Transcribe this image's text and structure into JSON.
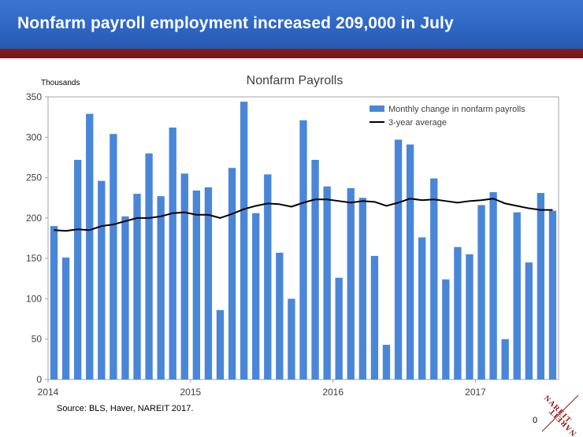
{
  "slide": {
    "title": "Nonfarm payroll employment increased 209,000 in July",
    "source": "Source: BLS, Haver, NAREIT 2017.",
    "page_number": "0",
    "logo_text": [
      "NAREIT",
      "NAREIT"
    ]
  },
  "chart_data": {
    "type": "bar",
    "title": "Nonfarm Payrolls",
    "ylabel": "Thousands",
    "xlabel": "",
    "ylim": [
      0,
      350
    ],
    "yticks": [
      0,
      50,
      100,
      150,
      200,
      250,
      300,
      350
    ],
    "xticks": [
      {
        "label": "2014",
        "index": 0
      },
      {
        "label": "2015",
        "index": 12
      },
      {
        "label": "2016",
        "index": 24
      },
      {
        "label": "2017",
        "index": 36
      }
    ],
    "grid": false,
    "legend_position": "top-right",
    "colors": {
      "bars": "#4a86d8",
      "line": "#000000"
    },
    "categories": [
      "2014-01",
      "2014-02",
      "2014-03",
      "2014-04",
      "2014-05",
      "2014-06",
      "2014-07",
      "2014-08",
      "2014-09",
      "2014-10",
      "2014-11",
      "2014-12",
      "2015-01",
      "2015-02",
      "2015-03",
      "2015-04",
      "2015-05",
      "2015-06",
      "2015-07",
      "2015-08",
      "2015-09",
      "2015-10",
      "2015-11",
      "2015-12",
      "2016-01",
      "2016-02",
      "2016-03",
      "2016-04",
      "2016-05",
      "2016-06",
      "2016-07",
      "2016-08",
      "2016-09",
      "2016-10",
      "2016-11",
      "2016-12",
      "2017-01",
      "2017-02",
      "2017-03",
      "2017-04",
      "2017-05",
      "2017-06",
      "2017-07"
    ],
    "series": [
      {
        "name": "Monthly change in nonfarm payrolls",
        "kind": "bar",
        "values": [
          190,
          151,
          272,
          329,
          246,
          304,
          202,
          230,
          280,
          227,
          312,
          255,
          234,
          238,
          86,
          262,
          344,
          206,
          254,
          157,
          100,
          321,
          272,
          239,
          126,
          237,
          225,
          153,
          43,
          297,
          291,
          176,
          249,
          124,
          164,
          155,
          216,
          232,
          50,
          207,
          145,
          231,
          209
        ]
      },
      {
        "name": "3-year average",
        "kind": "line",
        "values": [
          185,
          184,
          186,
          185,
          190,
          192,
          196,
          200,
          200,
          202,
          206,
          207,
          204,
          204,
          200,
          205,
          211,
          215,
          218,
          217,
          214,
          219,
          223,
          223,
          221,
          219,
          221,
          220,
          215,
          219,
          224,
          222,
          223,
          221,
          219,
          221,
          222,
          224,
          218,
          215,
          212,
          210,
          210
        ]
      }
    ]
  }
}
